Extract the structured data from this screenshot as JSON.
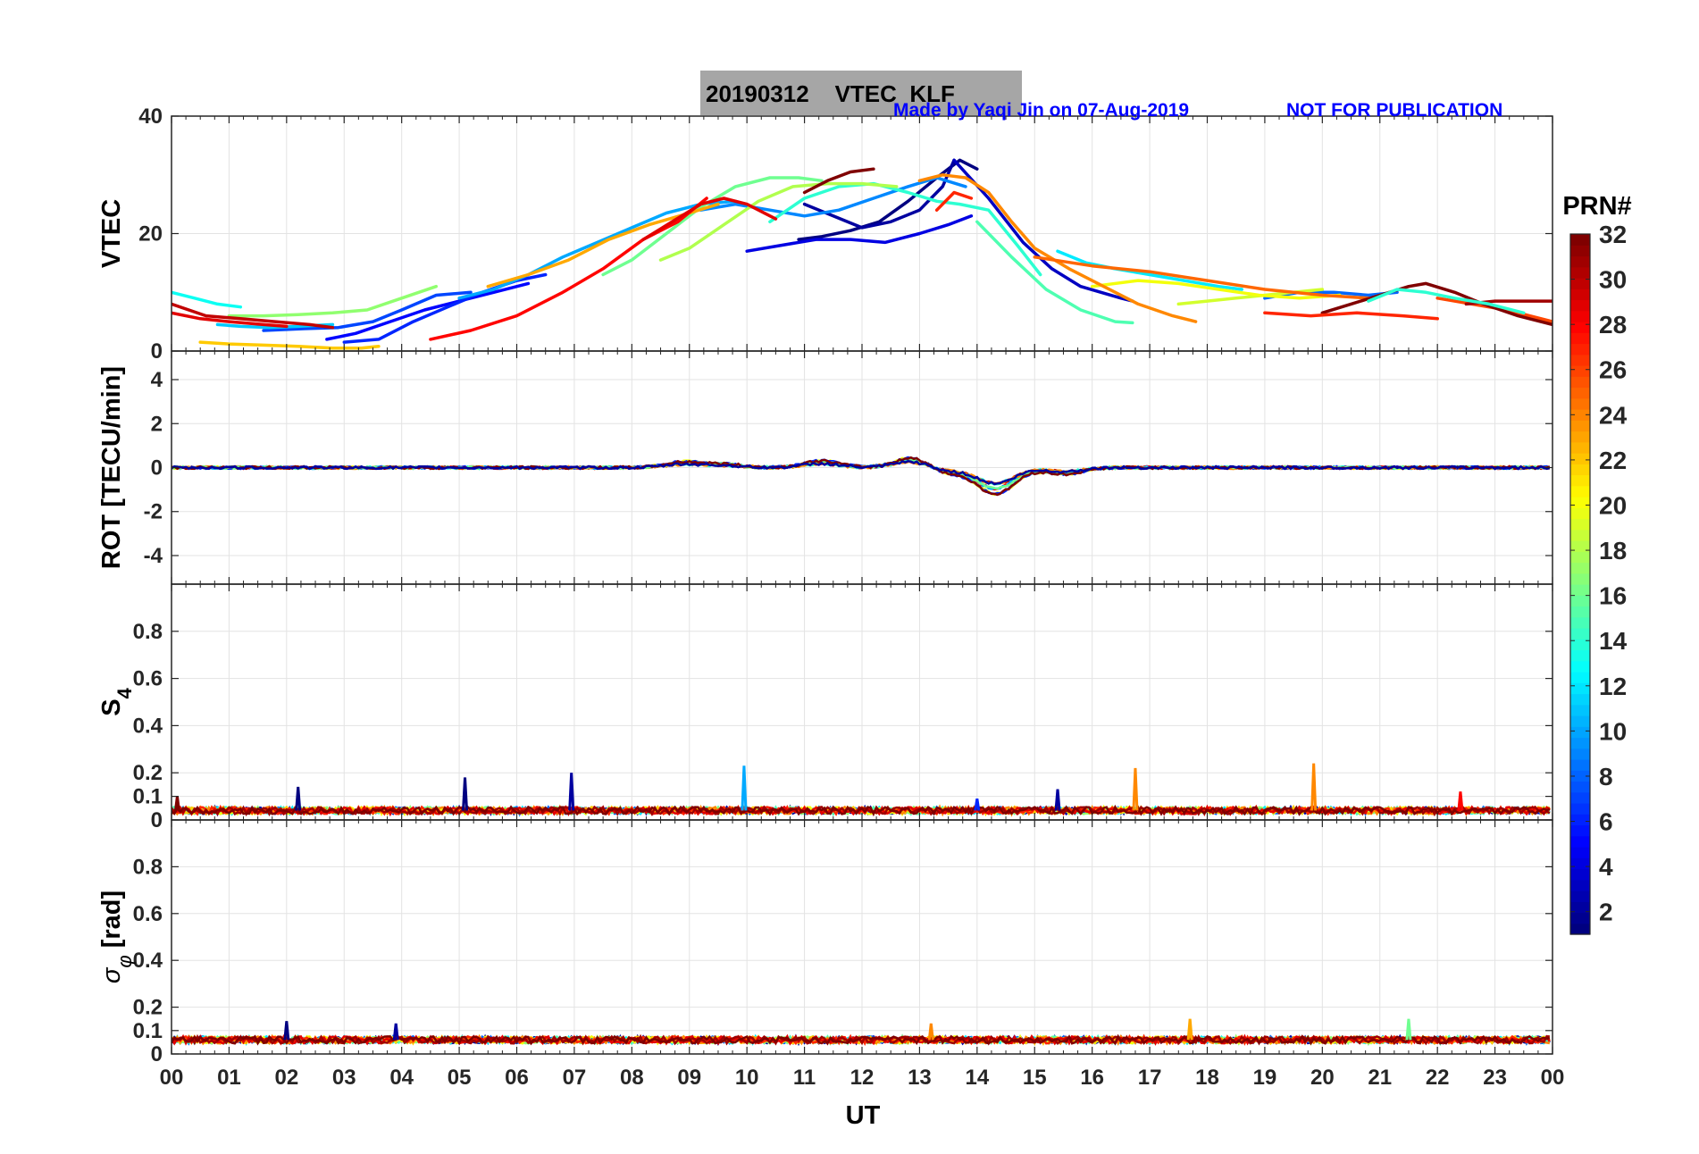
{
  "figure": {
    "title": "20190312    VTEC  KLF",
    "credit": "Made by Yaqi Jin on 07-Aug-2019",
    "notice": "NOT FOR PUBLICATION",
    "xlabel": "UT"
  },
  "colorbar": {
    "label": "PRN#",
    "range": [
      1,
      32
    ],
    "ticks": [
      "2",
      "4",
      "6",
      "8",
      "10",
      "12",
      "14",
      "16",
      "18",
      "20",
      "22",
      "24",
      "26",
      "28",
      "30",
      "32"
    ],
    "colormap": "jet"
  },
  "chart_data": [
    {
      "type": "line",
      "panel": "vtec",
      "ylabel": "VTEC",
      "xlim": [
        0,
        24
      ],
      "ylim": [
        0,
        40
      ],
      "yticks": [
        "0",
        "20",
        "40"
      ],
      "xticks": [
        "00",
        "01",
        "02",
        "03",
        "04",
        "05",
        "06",
        "07",
        "08",
        "09",
        "10",
        "11",
        "12",
        "13",
        "14",
        "15",
        "16",
        "17",
        "18",
        "19",
        "20",
        "21",
        "22",
        "23",
        "00"
      ],
      "grid": true,
      "series": [
        {
          "prn": 1,
          "x": [
            10.9,
            11.3,
            11.8,
            12.3,
            12.8,
            13.3,
            13.7,
            14.0
          ],
          "y": [
            19,
            19.5,
            20.5,
            22,
            25.5,
            29.5,
            32.5,
            31
          ]
        },
        {
          "prn": 2,
          "x": [
            11.0,
            11.5,
            12.0,
            12.5,
            13.0,
            13.4,
            13.6
          ],
          "y": [
            25,
            23,
            21,
            22,
            24,
            28,
            32.5
          ]
        },
        {
          "prn": 3,
          "x": [
            13.6,
            14.2,
            14.8,
            15.3,
            15.8,
            16.5,
            16.7
          ],
          "y": [
            32.5,
            26,
            18.5,
            14,
            11,
            9,
            8.5
          ]
        },
        {
          "prn": 4,
          "x": [
            10.0,
            10.6,
            11.2,
            11.8,
            12.4,
            13.0,
            13.5,
            13.9
          ],
          "y": [
            17,
            18,
            19,
            19,
            18.5,
            20,
            21.5,
            23
          ]
        },
        {
          "prn": 5,
          "x": [
            2.7,
            3.2,
            3.8,
            4.4,
            5.0,
            5.6,
            6.2
          ],
          "y": [
            2,
            3,
            5,
            7,
            8.5,
            10,
            11.5
          ]
        },
        {
          "prn": 6,
          "x": [
            3.0,
            3.6,
            4.2,
            4.8,
            5.4,
            6.0,
            6.5
          ],
          "y": [
            1.5,
            2,
            5,
            7.5,
            10,
            12,
            13
          ]
        },
        {
          "prn": 7,
          "x": [
            1.6,
            2.3,
            2.9,
            3.5,
            4.0,
            4.6,
            5.2
          ],
          "y": [
            3.5,
            3.8,
            4,
            5,
            7,
            9.5,
            10
          ]
        },
        {
          "prn": 8,
          "x": [
            19.0,
            19.6,
            20.2,
            20.8,
            21.3
          ],
          "y": [
            9,
            10,
            10,
            9.5,
            10
          ]
        },
        {
          "prn": 9,
          "x": [
            9.2,
            9.8,
            10.4,
            11.0,
            11.6,
            12.2,
            12.8,
            13.3,
            13.8
          ],
          "y": [
            24,
            25,
            24,
            23,
            24,
            26,
            28,
            29.5,
            28
          ]
        },
        {
          "prn": 10,
          "x": [
            5.0,
            5.6,
            6.2,
            6.8,
            7.4,
            8.0,
            8.6,
            9.2,
            9.8
          ],
          "y": [
            9,
            10.5,
            13,
            16,
            18.5,
            21,
            23.5,
            25,
            25.5
          ]
        },
        {
          "prn": 11,
          "x": [
            0.8,
            1.2,
            1.7,
            2.2,
            2.8
          ],
          "y": [
            4.5,
            4.2,
            4,
            4.2,
            4.5
          ]
        },
        {
          "prn": 12,
          "x": [
            15.4,
            15.9,
            16.4,
            17.0,
            17.6,
            18.2,
            18.6
          ],
          "y": [
            17,
            15,
            14,
            13,
            12,
            11,
            10.5
          ]
        },
        {
          "prn": 13,
          "x": [
            0.0,
            0.4,
            0.8,
            1.2
          ],
          "y": [
            10,
            9,
            8,
            7.5
          ]
        },
        {
          "prn": 14,
          "x": [
            10.4,
            11.0,
            11.6,
            12.2,
            12.8,
            13.3,
            13.7,
            14.2,
            14.7,
            15.1
          ],
          "y": [
            22,
            26,
            28,
            28.5,
            27,
            25.5,
            25,
            24,
            18,
            13
          ]
        },
        {
          "prn": 15,
          "x": [
            14.0,
            14.6,
            15.2,
            15.8,
            16.4,
            16.7
          ],
          "y": [
            22,
            16,
            10.5,
            7,
            5,
            4.8
          ]
        },
        {
          "prn": 16,
          "x": [
            7.5,
            8.0,
            8.6,
            9.2,
            9.8,
            10.4,
            10.9,
            11.3
          ],
          "y": [
            13,
            15.5,
            20,
            24.5,
            28,
            29.5,
            29.5,
            29
          ]
        },
        {
          "prn": 17,
          "x": [
            1.0,
            1.6,
            2.2,
            2.8,
            3.4,
            4.0,
            4.6
          ],
          "y": [
            6,
            6,
            6.2,
            6.5,
            7,
            9,
            11
          ]
        },
        {
          "prn": 18,
          "x": [
            8.5,
            9.0,
            9.6,
            10.2,
            10.8,
            11.4,
            12.0,
            12.6
          ],
          "y": [
            15.5,
            17.5,
            21.5,
            25.5,
            28,
            28.5,
            28.5,
            28
          ]
        },
        {
          "prn": 19,
          "x": [
            17.5,
            18.0,
            18.5,
            19.0,
            19.5,
            20.0
          ],
          "y": [
            8,
            8.5,
            9,
            9.5,
            10,
            10.5
          ]
        },
        {
          "prn": 20,
          "x": [
            16.0,
            16.8,
            17.5,
            18.2,
            18.9,
            19.6,
            20.3
          ],
          "y": [
            11,
            12,
            11.5,
            10.5,
            9.5,
            9,
            9.5
          ]
        },
        {
          "prn": 22,
          "x": [
            0.5,
            1.0,
            1.6,
            2.2,
            2.8,
            3.3,
            3.6
          ],
          "y": [
            1.5,
            1.2,
            1,
            0.8,
            0.5,
            0.5,
            0.8
          ]
        },
        {
          "prn": 23,
          "x": [
            5.5,
            6.2,
            6.9,
            7.6,
            8.3,
            9.0,
            9.5
          ],
          "y": [
            11,
            13,
            15.5,
            19,
            21.5,
            23.5,
            25
          ]
        },
        {
          "prn": 24,
          "x": [
            13.0,
            13.4,
            13.8,
            14.2,
            14.6,
            15.0,
            15.6,
            16.2,
            16.8,
            17.4,
            17.8
          ],
          "y": [
            29,
            30,
            29.5,
            27,
            22,
            17.5,
            14,
            11,
            8,
            6,
            5
          ]
        },
        {
          "prn": 25,
          "x": [
            15.0,
            16.0,
            17.0,
            18.0,
            19.0,
            20.0,
            20.8
          ],
          "y": [
            16,
            14.5,
            13.5,
            12,
            10.5,
            9.5,
            9
          ]
        },
        {
          "prn": 26,
          "x": [
            22.0,
            22.6,
            23.2,
            24.0
          ],
          "y": [
            9,
            8,
            7,
            5
          ]
        },
        {
          "prn": 28,
          "x": [
            4.5,
            5.2,
            6.0,
            6.8,
            7.5,
            8.2,
            8.8,
            9.3
          ],
          "y": [
            2,
            3.5,
            6,
            10,
            14,
            19,
            22,
            26
          ]
        },
        {
          "prn": 29,
          "x": [
            8.2,
            8.7,
            9.2,
            9.6,
            10.0,
            10.5
          ],
          "y": [
            19,
            22,
            25,
            26,
            25,
            22.5
          ]
        },
        {
          "prn": 30,
          "x": [
            0.0,
            0.6,
            1.2,
            1.8,
            2.4,
            2.8
          ],
          "y": [
            8,
            6,
            5.5,
            5,
            4.5,
            4
          ]
        },
        {
          "prn": 31,
          "x": [
            22.5,
            23.0,
            23.5,
            24.0
          ],
          "y": [
            8,
            8.5,
            8.5,
            8.5
          ]
        },
        {
          "prn": 32,
          "x": [
            11.0,
            11.4,
            11.8,
            12.2
          ],
          "y": [
            27,
            29,
            30.5,
            31
          ]
        },
        {
          "prn": 32,
          "x": [
            20.0,
            20.5,
            21.0,
            21.5,
            21.8,
            22.3,
            22.8,
            23.4,
            24.0
          ],
          "y": [
            6.5,
            8,
            9.5,
            11,
            11.5,
            10,
            8,
            6,
            4.5
          ]
        },
        {
          "prn": 27,
          "x": [
            13.3,
            13.6,
            13.9
          ],
          "y": [
            24,
            27,
            26
          ]
        },
        {
          "prn": 14,
          "x": [
            20.8,
            21.3,
            21.8,
            22.3,
            22.9,
            23.5
          ],
          "y": [
            8.5,
            10.5,
            10,
            9,
            8,
            6.5
          ]
        },
        {
          "prn": 29,
          "x": [
            0.0,
            0.5,
            1.0,
            1.6,
            2.0
          ],
          "y": [
            6.5,
            5.5,
            5,
            4.5,
            4.2
          ]
        },
        {
          "prn": 27,
          "x": [
            19.0,
            19.8,
            20.6,
            21.4,
            22.0
          ],
          "y": [
            6.5,
            6,
            6.5,
            6,
            5.5
          ]
        }
      ]
    },
    {
      "type": "line",
      "panel": "rot",
      "ylabel": "ROT [TECU/min]",
      "xlim": [
        0,
        24
      ],
      "ylim": [
        -5.3,
        5.3
      ],
      "yticks": [
        "-4",
        "-2",
        "0",
        "2",
        "4"
      ],
      "grid": true,
      "baseline": 0,
      "disturbance": [
        {
          "x": 8.9,
          "y": 0.25
        },
        {
          "x": 9.6,
          "y": 0.15
        },
        {
          "x": 11.3,
          "y": 0.3
        },
        {
          "x": 12.9,
          "y": 0.5
        },
        {
          "x": 13.4,
          "y": -0.3
        },
        {
          "x": 14.2,
          "y": -0.5
        },
        {
          "x": 14.4,
          "y": -0.75
        },
        {
          "x": 15.5,
          "y": -0.3
        }
      ]
    },
    {
      "type": "line",
      "panel": "s4",
      "ylabel": "S4",
      "xlim": [
        0,
        24
      ],
      "ylim": [
        0,
        1
      ],
      "yticks": [
        "0",
        "0.1",
        "0.2",
        "0.4",
        "0.6",
        "0.8"
      ],
      "grid": true,
      "baseline": 0.04,
      "spikes": [
        {
          "x": 0.1,
          "y": 0.1,
          "prn": 32
        },
        {
          "x": 2.2,
          "y": 0.14,
          "prn": 1
        },
        {
          "x": 5.1,
          "y": 0.18,
          "prn": 1
        },
        {
          "x": 6.95,
          "y": 0.2,
          "prn": 2
        },
        {
          "x": 9.95,
          "y": 0.23,
          "prn": 10
        },
        {
          "x": 14.0,
          "y": 0.09,
          "prn": 6
        },
        {
          "x": 15.4,
          "y": 0.13,
          "prn": 2
        },
        {
          "x": 16.75,
          "y": 0.22,
          "prn": 24
        },
        {
          "x": 19.85,
          "y": 0.24,
          "prn": 24
        },
        {
          "x": 22.4,
          "y": 0.12,
          "prn": 28
        }
      ]
    },
    {
      "type": "line",
      "panel": "sigma-phi",
      "ylabel": "σ_φ [rad]",
      "xlim": [
        0,
        24
      ],
      "ylim": [
        0,
        1
      ],
      "yticks": [
        "0",
        "0.1",
        "0.2",
        "0.4",
        "0.6",
        "0.8"
      ],
      "grid": true,
      "baseline": 0.06,
      "spikes": [
        {
          "x": 2.0,
          "y": 0.14,
          "prn": 1
        },
        {
          "x": 3.9,
          "y": 0.13,
          "prn": 2
        },
        {
          "x": 13.2,
          "y": 0.13,
          "prn": 24
        },
        {
          "x": 17.7,
          "y": 0.15,
          "prn": 23
        },
        {
          "x": 21.5,
          "y": 0.15,
          "prn": 16
        }
      ]
    }
  ]
}
